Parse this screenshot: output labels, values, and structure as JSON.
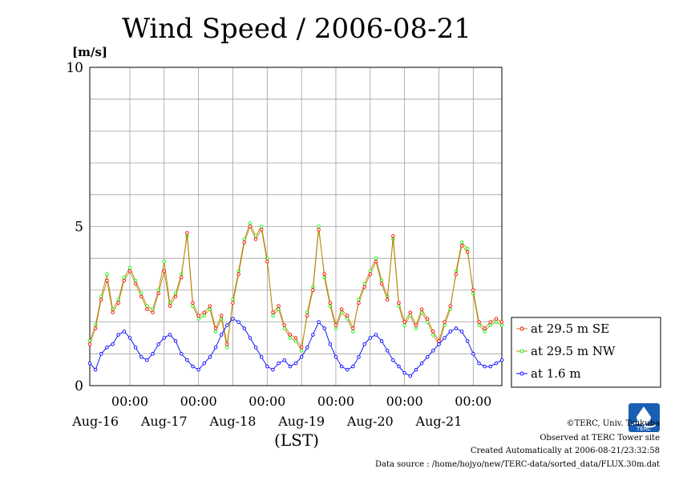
{
  "chart_data": {
    "type": "line",
    "title": "Wind Speed / 2006-08-21",
    "ylabel": "[m/s]",
    "xlabel": "(LST)",
    "ylim": [
      0,
      10
    ],
    "yticks": [
      "0",
      "5",
      "10"
    ],
    "xticks": [
      {
        "time": "00:00",
        "date": "Aug-16"
      },
      {
        "time": "00:00",
        "date": "Aug-17"
      },
      {
        "time": "00:00",
        "date": "Aug-18"
      },
      {
        "time": "00:00",
        "date": "Aug-19"
      },
      {
        "time": "00:00",
        "date": "Aug-20"
      },
      {
        "time": "00:00",
        "date": "Aug-21"
      }
    ],
    "x_hours_range": [
      -14,
      130
    ],
    "grid": true,
    "legend_position": "right",
    "series": [
      {
        "name": "at 29.5 m SE",
        "color": "#ff0000",
        "line_color": "#b8860b",
        "x": [
          -14,
          -12,
          -10,
          -8,
          -6,
          -4,
          -2,
          0,
          2,
          4,
          6,
          8,
          10,
          12,
          14,
          16,
          18,
          20,
          22,
          24,
          26,
          28,
          30,
          32,
          34,
          36,
          38,
          40,
          42,
          44,
          46,
          48,
          50,
          52,
          54,
          56,
          58,
          60,
          62,
          64,
          66,
          68,
          70,
          72,
          74,
          76,
          78,
          80,
          82,
          84,
          86,
          88,
          90,
          92,
          94,
          96,
          98,
          100,
          102,
          104,
          106,
          108,
          110,
          112,
          114,
          116,
          118,
          120,
          122,
          124,
          126,
          128,
          130
        ],
        "y": [
          1.3,
          1.8,
          2.7,
          3.3,
          2.3,
          2.6,
          3.3,
          3.6,
          3.2,
          2.8,
          2.4,
          2.3,
          2.9,
          3.6,
          2.5,
          2.8,
          3.4,
          4.8,
          2.6,
          2.2,
          2.3,
          2.5,
          1.8,
          2.2,
          1.3,
          2.6,
          3.5,
          4.5,
          5.0,
          4.6,
          4.9,
          3.9,
          2.3,
          2.5,
          1.9,
          1.6,
          1.5,
          1.2,
          2.2,
          3.0,
          4.9,
          3.5,
          2.6,
          1.9,
          2.4,
          2.2,
          1.8,
          2.6,
          3.1,
          3.5,
          3.9,
          3.2,
          2.7,
          4.7,
          2.6,
          2.0,
          2.3,
          1.9,
          2.4,
          2.1,
          1.7,
          1.4,
          2.0,
          2.5,
          3.5,
          4.4,
          4.2,
          3.0,
          2.0,
          1.8,
          2.0,
          2.1,
          2.0
        ]
      },
      {
        "name": "at 29.5 m NW",
        "color": "#00ff00",
        "line_color": "#b8860b",
        "x": [
          -14,
          -12,
          -10,
          -8,
          -6,
          -4,
          -2,
          0,
          2,
          4,
          6,
          8,
          10,
          12,
          14,
          16,
          18,
          20,
          22,
          24,
          26,
          28,
          30,
          32,
          34,
          36,
          38,
          40,
          42,
          44,
          46,
          48,
          50,
          52,
          54,
          56,
          58,
          60,
          62,
          64,
          66,
          68,
          70,
          72,
          74,
          76,
          78,
          80,
          82,
          84,
          86,
          88,
          90,
          92,
          94,
          96,
          98,
          100,
          102,
          104,
          106,
          108,
          110,
          112,
          114,
          116,
          118,
          120,
          122,
          124,
          126,
          128,
          130
        ],
        "y": [
          1.4,
          1.9,
          2.8,
          3.5,
          2.4,
          2.7,
          3.4,
          3.7,
          3.3,
          2.9,
          2.5,
          2.4,
          3.0,
          3.9,
          2.6,
          2.9,
          3.5,
          4.7,
          2.5,
          2.1,
          2.2,
          2.4,
          1.7,
          2.1,
          1.2,
          2.7,
          3.6,
          4.6,
          5.1,
          4.7,
          5.0,
          4.0,
          2.2,
          2.4,
          1.8,
          1.5,
          1.4,
          1.1,
          2.3,
          3.1,
          5.0,
          3.4,
          2.5,
          1.8,
          2.3,
          2.1,
          1.7,
          2.7,
          3.2,
          3.6,
          4.0,
          3.3,
          2.8,
          4.6,
          2.5,
          1.9,
          2.2,
          1.8,
          2.3,
          2.0,
          1.6,
          1.3,
          1.9,
          2.4,
          3.6,
          4.5,
          4.3,
          2.9,
          1.9,
          1.7,
          1.9,
          2.0,
          1.9
        ]
      },
      {
        "name": "at 1.6 m",
        "color": "#0000ff",
        "line_color": "#0000ff",
        "x": [
          -14,
          -12,
          -10,
          -8,
          -6,
          -4,
          -2,
          0,
          2,
          4,
          6,
          8,
          10,
          12,
          14,
          16,
          18,
          20,
          22,
          24,
          26,
          28,
          30,
          32,
          34,
          36,
          38,
          40,
          42,
          44,
          46,
          48,
          50,
          52,
          54,
          56,
          58,
          60,
          62,
          64,
          66,
          68,
          70,
          72,
          74,
          76,
          78,
          80,
          82,
          84,
          86,
          88,
          90,
          92,
          94,
          96,
          98,
          100,
          102,
          104,
          106,
          108,
          110,
          112,
          114,
          116,
          118,
          120,
          122,
          124,
          126,
          128,
          130
        ],
        "y": [
          0.7,
          0.5,
          1.0,
          1.2,
          1.3,
          1.6,
          1.7,
          1.5,
          1.2,
          0.9,
          0.8,
          1.0,
          1.3,
          1.5,
          1.6,
          1.4,
          1.0,
          0.8,
          0.6,
          0.5,
          0.7,
          0.9,
          1.2,
          1.6,
          1.9,
          2.1,
          2.0,
          1.8,
          1.5,
          1.2,
          0.9,
          0.6,
          0.5,
          0.7,
          0.8,
          0.6,
          0.7,
          0.9,
          1.2,
          1.6,
          2.0,
          1.8,
          1.3,
          0.9,
          0.6,
          0.5,
          0.6,
          0.9,
          1.3,
          1.5,
          1.6,
          1.4,
          1.1,
          0.8,
          0.6,
          0.4,
          0.3,
          0.5,
          0.7,
          0.9,
          1.1,
          1.3,
          1.5,
          1.7,
          1.8,
          1.7,
          1.4,
          1.0,
          0.7,
          0.6,
          0.6,
          0.7,
          0.8
        ]
      }
    ]
  },
  "footer": {
    "copyright": "©TERC, Univ. Tsukuba",
    "observed": "Observed at TERC Tower site",
    "created": "Created Automatically at 2006-08-21/23:32:58",
    "datasource": "Data source : /home/hojyo/new/TERC-data/sorted_data/FLUX.30m.dat",
    "logo_text": "TERC"
  }
}
